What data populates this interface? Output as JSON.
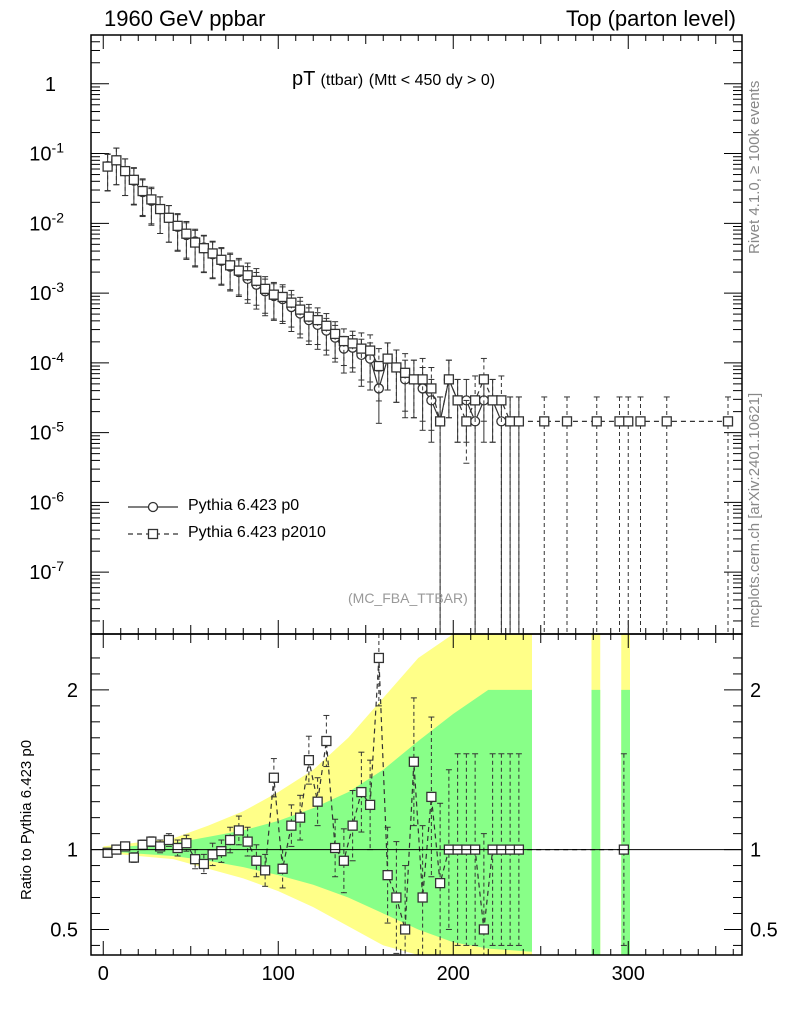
{
  "header": {
    "left": "1960 GeV ppbar",
    "right": "Top (parton level)"
  },
  "side_labels": {
    "rivet": "Rivet 4.1.0, ≥ 100k events",
    "mcplots": "mcplots.cern.ch [arXiv:2401.10621]"
  },
  "plot_title": {
    "main": "pT",
    "sub": "(ttbar)",
    "cut": "(Mtt < 450 dy > 0)"
  },
  "watermark": "(MC_FBA_TTBAR)",
  "legend": [
    {
      "label": "Pythia 6.423 p0",
      "marker": "circle",
      "line": "solid"
    },
    {
      "label": "Pythia 6.423 p2010",
      "marker": "square",
      "line": "dashed"
    }
  ],
  "colors": {
    "line": "#333333",
    "band_outer": "#ffff88",
    "band_inner": "#88ff88"
  },
  "chart_data": [
    {
      "type": "line",
      "panel": "main",
      "yscale": "log",
      "xlim": [
        -7,
        365
      ],
      "ylim": [
        1.3e-08,
        5
      ],
      "ytick_labels": [
        "1",
        "10^-1",
        "10^-2",
        "10^-3",
        "10^-4",
        "10^-5",
        "10^-6",
        "10^-7"
      ],
      "x": [
        2.5,
        7.5,
        12.5,
        17.5,
        22.5,
        27.5,
        32.5,
        37.5,
        42.5,
        47.5,
        52.5,
        57.5,
        62.5,
        67.5,
        72.5,
        77.5,
        82.5,
        87.5,
        92.5,
        97.5,
        102.5,
        107.5,
        112.5,
        117.5,
        122.5,
        127.5,
        132.5,
        137.5,
        142.5,
        147.5,
        152.5,
        157.5,
        162.5,
        167.5,
        172.5,
        177.5,
        182.5,
        187.5,
        192.5,
        197.5,
        202.5,
        207.5,
        212.5,
        217.5,
        222.5,
        227.5,
        232.5,
        237.5
      ],
      "series": [
        {
          "name": "Pythia 6.423 p0",
          "values": [
            0.066,
            0.08,
            0.056,
            0.041,
            0.028,
            0.021,
            0.016,
            0.012,
            0.0089,
            0.0068,
            0.0055,
            0.0045,
            0.0036,
            0.0029,
            0.0024,
            0.002,
            0.0016,
            0.00132,
            0.00106,
            0.00091,
            0.00082,
            0.00063,
            0.00051,
            0.00041,
            0.00035,
            0.00029,
            0.00023,
            0.00016,
            0.000165,
            0.00013,
            0.000115,
            4.3e-05,
            0.000115,
            8.6e-05,
            5.8e-05,
            5.8e-05,
            4.3e-05,
            2.9e-05,
            1.45e-05,
            5.8e-05,
            2.9e-05,
            2.9e-05,
            1.45e-05,
            2.9e-05,
            2.9e-05,
            1.45e-05,
            1.45e-05,
            1.45e-05
          ],
          "errors": [
            0.35,
            0.35,
            0.35,
            0.35,
            0.35,
            0.35,
            0.35,
            0.35,
            0.35,
            0.35,
            0.35,
            0.35,
            0.35,
            0.35,
            0.35,
            0.35,
            0.35,
            0.35,
            0.35,
            0.35,
            0.35,
            0.35,
            0.35,
            0.35,
            0.35,
            0.35,
            0.35,
            0.35,
            0.35,
            0.45,
            0.45,
            0.5,
            0.45,
            0.5,
            0.55,
            0.55,
            0.6,
            0.6,
            0.7,
            0.55,
            0.6,
            0.6,
            0.7,
            0.6,
            0.6,
            0.7,
            0.7,
            0.7
          ]
        },
        {
          "name": "Pythia 6.423 p2010",
          "values": [
            0.065,
            0.08,
            0.056,
            0.042,
            0.029,
            0.022,
            0.016,
            0.012,
            0.0092,
            0.0071,
            0.0053,
            0.0044,
            0.0037,
            0.003,
            0.0025,
            0.0021,
            0.0018,
            0.0015,
            0.00115,
            0.00095,
            0.00088,
            0.00073,
            0.00058,
            0.00046,
            0.00041,
            0.00034,
            0.00026,
            0.000205,
            0.00019,
            0.00016,
            0.00015,
            9e-05,
            0.000115,
            8.6e-05,
            7.2e-05,
            5.8e-05,
            5.8e-05,
            4.3e-05,
            1.45e-05,
            5.8e-05,
            2.9e-05,
            1.45e-05,
            2.9e-05,
            5.8e-05,
            2.9e-05,
            2.9e-05,
            1.45e-05,
            1.45e-05
          ],
          "errors": [
            0.35,
            0.35,
            0.35,
            0.35,
            0.35,
            0.35,
            0.35,
            0.35,
            0.35,
            0.35,
            0.35,
            0.35,
            0.35,
            0.35,
            0.35,
            0.35,
            0.35,
            0.35,
            0.35,
            0.35,
            0.35,
            0.35,
            0.35,
            0.35,
            0.35,
            0.35,
            0.35,
            0.35,
            0.35,
            0.45,
            0.45,
            0.5,
            0.45,
            0.5,
            0.55,
            0.55,
            0.6,
            0.6,
            0.7,
            0.55,
            0.6,
            0.6,
            0.7,
            0.6,
            0.6,
            0.7,
            0.7,
            0.7
          ],
          "tail_x": [
            252,
            265,
            282,
            295,
            300,
            307,
            322,
            357
          ],
          "tail_value": 1.45e-05
        }
      ]
    },
    {
      "type": "line",
      "panel": "ratio",
      "ylabel": "Ratio to Pythia 6.423 p0",
      "xlim": [
        -7,
        365
      ],
      "ylim": [
        0.34,
        2.35
      ],
      "x_ticks": [
        0,
        100,
        200,
        300
      ],
      "y_ticks": [
        0.5,
        1,
        2
      ],
      "y_tick_labels": [
        "0.5",
        "1",
        "2"
      ],
      "x": [
        2.5,
        7.5,
        12.5,
        17.5,
        22.5,
        27.5,
        32.5,
        37.5,
        42.5,
        47.5,
        52.5,
        57.5,
        62.5,
        67.5,
        72.5,
        77.5,
        82.5,
        87.5,
        92.5,
        97.5,
        102.5,
        107.5,
        112.5,
        117.5,
        122.5,
        127.5,
        132.5,
        137.5,
        142.5,
        147.5,
        152.5,
        157.5,
        162.5,
        167.5,
        172.5,
        177.5,
        182.5,
        187.5,
        192.5,
        197.5,
        202.5,
        207.5,
        212.5,
        217.5,
        222.5,
        227.5,
        232.5,
        237.5,
        297.5
      ],
      "values": [
        0.98,
        1.0,
        1.02,
        0.95,
        1.03,
        1.05,
        1.02,
        1.06,
        1.01,
        1.04,
        0.94,
        0.91,
        0.97,
        0.99,
        1.06,
        1.12,
        1.05,
        0.93,
        0.87,
        1.45,
        0.88,
        1.15,
        1.2,
        1.56,
        1.3,
        1.68,
        1.01,
        0.93,
        1.15,
        1.36,
        1.28,
        2.2,
        0.84,
        0.7,
        0.5,
        1.55,
        0.7,
        1.33,
        0.79,
        1.0,
        1.0,
        1.0,
        1.0,
        0.5,
        1.0,
        1.0,
        1.0,
        1.0,
        1.0
      ],
      "errors": [
        0.02,
        0.02,
        0.02,
        0.03,
        0.03,
        0.03,
        0.04,
        0.04,
        0.05,
        0.05,
        0.06,
        0.06,
        0.07,
        0.07,
        0.08,
        0.09,
        0.09,
        0.1,
        0.1,
        0.12,
        0.12,
        0.13,
        0.14,
        0.15,
        0.15,
        0.16,
        0.18,
        0.2,
        0.22,
        0.25,
        0.28,
        0.3,
        0.3,
        0.35,
        0.4,
        0.4,
        0.45,
        0.5,
        0.5,
        0.5,
        0.6,
        0.6,
        0.6,
        0.6,
        0.6,
        0.6,
        0.6,
        0.6,
        0.6
      ],
      "bands": [
        {
          "x": [
            0,
            40,
            60,
            80,
            100,
            120,
            140,
            160,
            180,
            200,
            220,
            245
          ],
          "lo": [
            0.98,
            0.94,
            0.88,
            0.82,
            0.74,
            0.64,
            0.52,
            0.4,
            0.34,
            0.34,
            0.34,
            0.34
          ],
          "hi": [
            1.02,
            1.07,
            1.15,
            1.24,
            1.36,
            1.5,
            1.7,
            1.95,
            2.2,
            2.35,
            2.35,
            2.35
          ],
          "layer": "outer"
        },
        {
          "x": [
            0,
            40,
            60,
            80,
            100,
            120,
            140,
            160,
            180,
            200,
            220,
            245
          ],
          "lo": [
            0.99,
            0.96,
            0.93,
            0.89,
            0.84,
            0.78,
            0.7,
            0.6,
            0.5,
            0.42,
            0.38,
            0.36
          ],
          "hi": [
            1.01,
            1.04,
            1.08,
            1.12,
            1.18,
            1.26,
            1.36,
            1.5,
            1.68,
            1.85,
            2.0,
            2.0
          ],
          "layer": "inner"
        },
        {
          "x": [
            279,
            284
          ],
          "lo": [
            0.34,
            0.34
          ],
          "hi": [
            2.35,
            2.35
          ],
          "layer": "outer"
        },
        {
          "x": [
            279,
            284
          ],
          "lo": [
            0.34,
            0.34
          ],
          "hi": [
            2.0,
            2.0
          ],
          "layer": "inner"
        },
        {
          "x": [
            296,
            301
          ],
          "lo": [
            0.34,
            0.34
          ],
          "hi": [
            2.35,
            2.35
          ],
          "layer": "outer"
        },
        {
          "x": [
            296,
            301
          ],
          "lo": [
            0.34,
            0.34
          ],
          "hi": [
            2.0,
            2.0
          ],
          "layer": "inner"
        }
      ]
    }
  ]
}
